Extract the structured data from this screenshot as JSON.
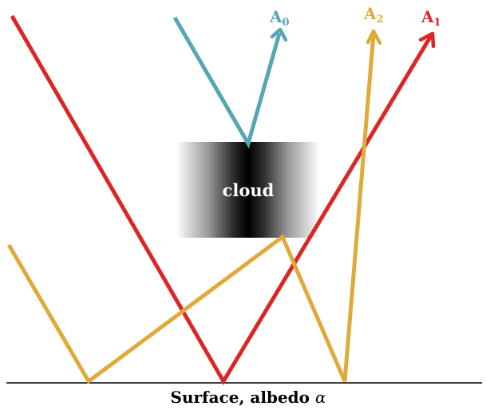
{
  "colors": {
    "a0": "#56a6b3",
    "a1": "#dc2626",
    "a2": "#dfaa3a",
    "surface": "#000000",
    "cloud_core": "#000000",
    "cloud_edge": "#ffffff",
    "cloud_text": "#ffffff"
  },
  "cloud": {
    "label": "cloud"
  },
  "surface": {
    "label": "Surface, albedo ",
    "symbol": "α"
  },
  "rays": {
    "a0": {
      "label_main": "A",
      "label_sub": "0"
    },
    "a1": {
      "label_main": "A",
      "label_sub": "1"
    },
    "a2": {
      "label_main": "A",
      "label_sub": "2"
    }
  }
}
